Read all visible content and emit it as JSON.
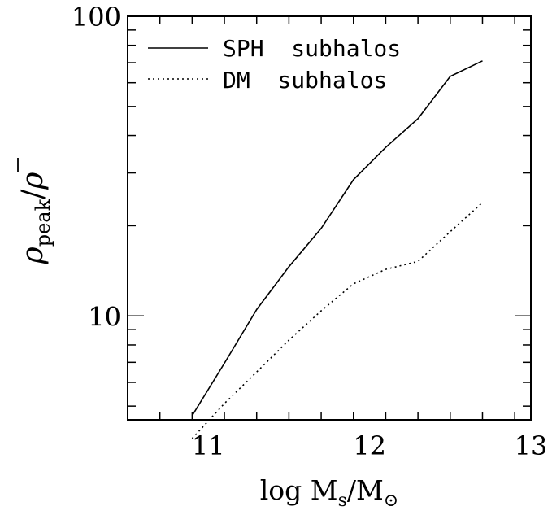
{
  "chart_data": {
    "type": "line",
    "xlabel": "log M_s/M_⊙",
    "ylabel": "ρ_peak/ρ̄",
    "xlim": [
      10.5,
      13
    ],
    "ylim": [
      4.5,
      100
    ],
    "yscale": "log",
    "x_ticks": [
      11,
      12,
      13
    ],
    "y_ticks": [
      10,
      100
    ],
    "x_tick_labels": [
      "11",
      "12",
      "13"
    ],
    "y_tick_labels": [
      "10",
      "100"
    ],
    "legend_position": "top-left",
    "grid": false,
    "series": [
      {
        "name": "SPH  subhalos",
        "line_style": "solid",
        "x": [
          10.9,
          11.1,
          11.3,
          11.5,
          11.7,
          11.9,
          12.1,
          12.3,
          12.5,
          12.7
        ],
        "y": [
          4.65,
          6.95,
          10.5,
          14.6,
          19.6,
          28.5,
          36.5,
          45.5,
          63.0,
          71.0
        ]
      },
      {
        "name": "DM  subhalos",
        "line_style": "dotted",
        "x": [
          10.9,
          11.1,
          11.3,
          11.5,
          11.7,
          11.9,
          12.1,
          12.3,
          12.5,
          12.7
        ],
        "y": [
          3.9,
          5.1,
          6.5,
          8.3,
          10.4,
          12.8,
          14.3,
          15.2,
          19.1,
          23.9
        ]
      }
    ]
  }
}
